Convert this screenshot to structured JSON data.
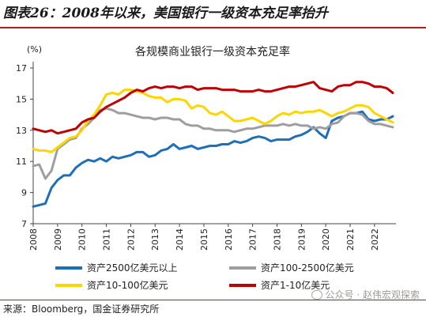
{
  "figure": {
    "title": "图表26：2008年以来，美国银行一级资本充足率抬升",
    "source": "来源：Bloomberg，国金证券研究所",
    "watermark": "公众号 · 赵伟宏观探索"
  },
  "chart_data": {
    "type": "line",
    "title": "各规模商业银行一级资本充足率",
    "ylabel": "(%)",
    "xlabel": "",
    "ylim": [
      7,
      17
    ],
    "yticks": [
      7,
      9,
      11,
      13,
      15,
      17
    ],
    "xlim": [
      2008,
      2022.75
    ],
    "xticks": [
      "2008",
      "2009",
      "2010",
      "2011",
      "2012",
      "2013",
      "2014",
      "2015",
      "2016",
      "2017",
      "2018",
      "2019",
      "2020",
      "2021",
      "2022"
    ],
    "x": [
      2008.0,
      2008.25,
      2008.5,
      2008.75,
      2009.0,
      2009.25,
      2009.5,
      2009.75,
      2010.0,
      2010.25,
      2010.5,
      2010.75,
      2011.0,
      2011.25,
      2011.5,
      2011.75,
      2012.0,
      2012.25,
      2012.5,
      2012.75,
      2013.0,
      2013.25,
      2013.5,
      2013.75,
      2014.0,
      2014.25,
      2014.5,
      2014.75,
      2015.0,
      2015.25,
      2015.5,
      2015.75,
      2016.0,
      2016.25,
      2016.5,
      2016.75,
      2017.0,
      2017.25,
      2017.5,
      2017.75,
      2018.0,
      2018.25,
      2018.5,
      2018.75,
      2019.0,
      2019.25,
      2019.5,
      2019.75,
      2020.0,
      2020.25,
      2020.5,
      2020.75,
      2021.0,
      2021.25,
      2021.5,
      2021.75,
      2022.0,
      2022.25,
      2022.5,
      2022.75
    ],
    "series": [
      {
        "name": "资产2500亿美元以上",
        "color": "#1f6fb8",
        "values": [
          8.1,
          8.2,
          8.3,
          9.3,
          9.8,
          10.1,
          10.1,
          10.6,
          10.9,
          11.1,
          11.0,
          11.2,
          11.0,
          11.3,
          11.2,
          11.3,
          11.4,
          11.6,
          11.6,
          11.3,
          11.4,
          11.7,
          11.8,
          12.1,
          11.8,
          11.9,
          12.0,
          11.8,
          11.9,
          12.0,
          12.0,
          12.1,
          12.1,
          12.3,
          12.2,
          12.3,
          12.5,
          12.6,
          12.5,
          12.3,
          12.4,
          12.4,
          12.4,
          12.6,
          12.7,
          12.9,
          13.2,
          12.8,
          12.5,
          13.6,
          13.8,
          13.9,
          14.1,
          14.1,
          14.2,
          13.7,
          13.6,
          13.7,
          13.7,
          13.9
        ]
      },
      {
        "name": "资产100-2500亿美元",
        "color": "#9e9e9e",
        "values": [
          10.7,
          10.8,
          9.9,
          10.4,
          11.8,
          12.1,
          12.4,
          12.5,
          13.1,
          13.4,
          13.8,
          14.3,
          14.4,
          14.3,
          14.1,
          14.1,
          14.0,
          13.9,
          13.8,
          13.8,
          13.7,
          13.8,
          13.8,
          13.7,
          13.7,
          13.4,
          13.3,
          13.3,
          13.1,
          13.1,
          13.0,
          13.0,
          13.0,
          12.9,
          13.0,
          13.1,
          13.1,
          13.2,
          13.3,
          13.3,
          13.3,
          13.4,
          13.3,
          13.4,
          13.3,
          13.3,
          13.1,
          13.2,
          13.1,
          13.4,
          13.5,
          13.9,
          14.1,
          14.1,
          14.0,
          13.6,
          13.4,
          13.4,
          13.3,
          13.2
        ]
      },
      {
        "name": "资产10-100亿美元",
        "color": "#ffd500",
        "values": [
          11.8,
          11.7,
          11.7,
          11.6,
          11.9,
          12.2,
          12.5,
          12.6,
          13.0,
          13.6,
          14.0,
          14.6,
          15.3,
          15.4,
          15.3,
          15.6,
          15.6,
          15.5,
          15.4,
          15.2,
          15.1,
          15.1,
          14.8,
          15.0,
          15.0,
          14.9,
          14.4,
          14.6,
          14.5,
          14.1,
          14.0,
          14.2,
          13.9,
          13.6,
          13.6,
          13.7,
          13.8,
          13.6,
          13.4,
          13.6,
          13.9,
          14.1,
          14.0,
          14.2,
          14.1,
          14.2,
          14.2,
          14.3,
          14.1,
          13.9,
          14.1,
          14.2,
          14.4,
          14.6,
          14.6,
          14.5,
          14.1,
          13.9,
          13.7,
          13.5
        ]
      },
      {
        "name": "资产1-10亿美元",
        "color": "#c00000",
        "values": [
          13.1,
          13.0,
          12.9,
          13.0,
          12.8,
          12.9,
          13.0,
          13.1,
          13.5,
          13.7,
          13.8,
          14.2,
          14.5,
          14.7,
          14.9,
          15.1,
          15.4,
          15.6,
          15.5,
          15.7,
          15.8,
          15.7,
          15.8,
          15.8,
          15.7,
          15.8,
          15.8,
          15.6,
          15.7,
          15.7,
          15.7,
          15.6,
          15.6,
          15.6,
          15.5,
          15.5,
          15.5,
          15.6,
          15.5,
          15.5,
          15.6,
          15.7,
          15.8,
          15.8,
          15.9,
          16.0,
          16.1,
          15.7,
          15.6,
          15.5,
          15.8,
          15.9,
          15.9,
          16.1,
          16.1,
          16.0,
          15.8,
          15.8,
          15.7,
          15.4
        ]
      }
    ],
    "legend_position": "bottom",
    "grid": false
  }
}
